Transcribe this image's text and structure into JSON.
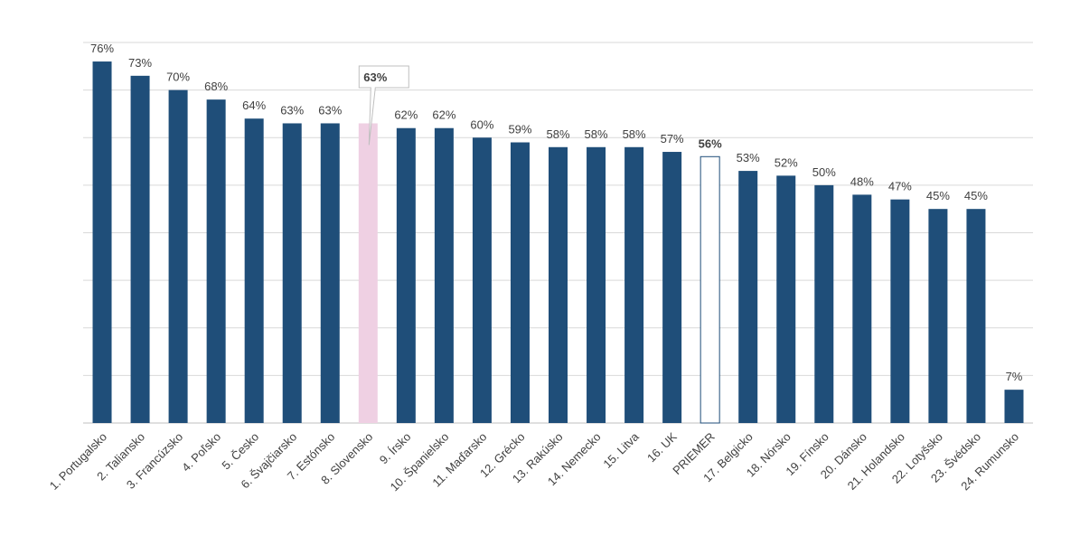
{
  "chart_data": {
    "type": "bar",
    "categories": [
      "1. Portugalsko",
      "2. Taliansko",
      "3. Francúzsko",
      "4. Poľsko",
      "5. Česko",
      "6. Švajčiarsko",
      "7. Estónsko",
      "8. Slovensko",
      "9. Írsko",
      "10. Španielsko",
      "11. Maďarsko",
      "12. Grécko",
      "13. Rakúsko",
      "14. Nemecko",
      "15. Litva",
      "16. UK",
      "PRIEMER",
      "17. Belgicko",
      "18. Nórsko",
      "19. Fínsko",
      "20. Dánsko",
      "21. Holandsko",
      "22. Lotyšsko",
      "23. Švédsko",
      "24. Rumunsko"
    ],
    "values": [
      76,
      73,
      70,
      68,
      64,
      63,
      63,
      63,
      62,
      62,
      60,
      59,
      58,
      58,
      58,
      57,
      56,
      53,
      52,
      50,
      48,
      47,
      45,
      45,
      7
    ],
    "value_labels": [
      "76%",
      "73%",
      "70%",
      "68%",
      "64%",
      "63%",
      "63%",
      "63%",
      "62%",
      "62%",
      "60%",
      "59%",
      "58%",
      "58%",
      "58%",
      "57%",
      "56%",
      "53%",
      "52%",
      "50%",
      "48%",
      "47%",
      "45%",
      "45%",
      "7%"
    ],
    "ylim": [
      0,
      80
    ],
    "grid": true,
    "highlight": {
      "category": "8. Slovensko",
      "color": "#efd0e3",
      "callout": true
    },
    "average": {
      "category": "PRIEMER",
      "style": "outline"
    },
    "colors": {
      "bar": "#1f4e79",
      "highlight": "#efd0e3",
      "average_fill": "#ffffff",
      "average_stroke": "#1f4e79"
    }
  }
}
